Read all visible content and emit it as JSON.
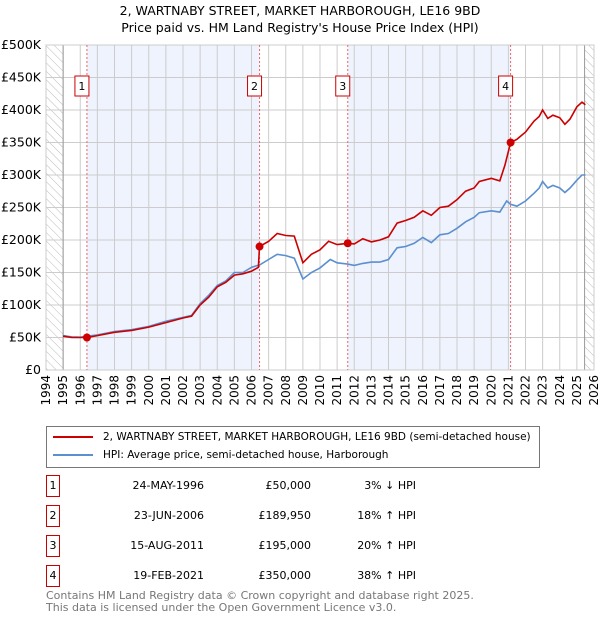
{
  "title": {
    "line1": "2, WARTNABY STREET, MARKET HARBOROUGH, LE16 9BD",
    "line2": "Price paid vs. HM Land Registry's House Price Index (HPI)"
  },
  "chart_data": {
    "type": "line",
    "xlim": [
      1994,
      2026
    ],
    "ylim": [
      0,
      500000
    ],
    "y_ticks": [
      {
        "v": 0,
        "label": "£0"
      },
      {
        "v": 50000,
        "label": "£50K"
      },
      {
        "v": 100000,
        "label": "£100K"
      },
      {
        "v": 150000,
        "label": "£150K"
      },
      {
        "v": 200000,
        "label": "£200K"
      },
      {
        "v": 250000,
        "label": "£250K"
      },
      {
        "v": 300000,
        "label": "£300K"
      },
      {
        "v": 350000,
        "label": "£350K"
      },
      {
        "v": 400000,
        "label": "£400K"
      },
      {
        "v": 450000,
        "label": "£450K"
      },
      {
        "v": 500000,
        "label": "£500K"
      }
    ],
    "x_ticks": [
      "1994",
      "1995",
      "1996",
      "1997",
      "1998",
      "1999",
      "2000",
      "2001",
      "2002",
      "2003",
      "2004",
      "2005",
      "2006",
      "2007",
      "2008",
      "2009",
      "2010",
      "2011",
      "2012",
      "2013",
      "2014",
      "2015",
      "2016",
      "2017",
      "2018",
      "2019",
      "2020",
      "2021",
      "2022",
      "2023",
      "2024",
      "2025",
      "2026"
    ],
    "grid": true,
    "colors": {
      "property": "#cc0000",
      "hpi": "#5b8fd0",
      "shade": "#eef3fd"
    },
    "series": [
      {
        "name": "2, WARTNABY STREET, MARKET HARBOROUGH, LE16 9BD (semi-detached house)",
        "points": [
          [
            1995,
            52000
          ],
          [
            1995.5,
            50000
          ],
          [
            1996.4,
            50000
          ],
          [
            1997,
            53000
          ],
          [
            1998,
            58000
          ],
          [
            1999,
            61000
          ],
          [
            2000,
            66000
          ],
          [
            2001,
            73000
          ],
          [
            2002,
            80000
          ],
          [
            2002.5,
            83000
          ],
          [
            2003,
            100000
          ],
          [
            2003.5,
            112000
          ],
          [
            2004,
            128000
          ],
          [
            2004.5,
            135000
          ],
          [
            2005,
            146000
          ],
          [
            2005.5,
            148000
          ],
          [
            2006,
            152000
          ],
          [
            2006.4,
            158000
          ],
          [
            2006.47,
            189950
          ],
          [
            2007,
            198000
          ],
          [
            2007.5,
            210000
          ],
          [
            2008,
            207000
          ],
          [
            2008.5,
            206000
          ],
          [
            2009,
            165000
          ],
          [
            2009.5,
            178000
          ],
          [
            2010,
            185000
          ],
          [
            2010.5,
            198000
          ],
          [
            2011,
            193000
          ],
          [
            2011.62,
            195000
          ],
          [
            2012,
            194000
          ],
          [
            2012.5,
            202000
          ],
          [
            2013,
            197000
          ],
          [
            2013.5,
            200000
          ],
          [
            2014,
            205000
          ],
          [
            2014.5,
            226000
          ],
          [
            2015,
            230000
          ],
          [
            2015.5,
            235000
          ],
          [
            2016,
            245000
          ],
          [
            2016.5,
            238000
          ],
          [
            2017,
            250000
          ],
          [
            2017.5,
            252000
          ],
          [
            2018,
            262000
          ],
          [
            2018.5,
            275000
          ],
          [
            2019,
            280000
          ],
          [
            2019.3,
            290000
          ],
          [
            2020,
            295000
          ],
          [
            2020.5,
            291000
          ],
          [
            2020.8,
            315000
          ],
          [
            2021.13,
            350000
          ],
          [
            2021.5,
            355000
          ],
          [
            2022,
            366000
          ],
          [
            2022.5,
            383000
          ],
          [
            2022.8,
            390000
          ],
          [
            2023,
            400000
          ],
          [
            2023.3,
            387000
          ],
          [
            2023.6,
            392000
          ],
          [
            2024,
            388000
          ],
          [
            2024.3,
            378000
          ],
          [
            2024.6,
            386000
          ],
          [
            2025,
            405000
          ],
          [
            2025.3,
            412000
          ],
          [
            2025.5,
            408000
          ]
        ]
      },
      {
        "name": "HPI: Average price, semi-detached house, Harborough",
        "points": [
          [
            1995,
            53000
          ],
          [
            1995.5,
            51000
          ],
          [
            1996,
            50500
          ],
          [
            1997,
            54000
          ],
          [
            1998,
            59000
          ],
          [
            1999,
            62000
          ],
          [
            2000,
            67000
          ],
          [
            2001,
            75000
          ],
          [
            2002,
            81000
          ],
          [
            2002.5,
            84000
          ],
          [
            2003,
            102000
          ],
          [
            2003.5,
            115000
          ],
          [
            2004,
            130000
          ],
          [
            2004.5,
            137000
          ],
          [
            2005,
            150000
          ],
          [
            2005.5,
            150000
          ],
          [
            2006,
            158000
          ],
          [
            2006.5,
            162000
          ],
          [
            2007,
            170000
          ],
          [
            2007.5,
            178000
          ],
          [
            2008,
            176000
          ],
          [
            2008.5,
            172000
          ],
          [
            2009,
            140000
          ],
          [
            2009.5,
            150000
          ],
          [
            2010,
            157000
          ],
          [
            2010.6,
            170000
          ],
          [
            2011,
            165000
          ],
          [
            2011.62,
            163000
          ],
          [
            2012,
            161000
          ],
          [
            2012.5,
            164000
          ],
          [
            2013,
            166000
          ],
          [
            2013.5,
            166000
          ],
          [
            2014,
            170000
          ],
          [
            2014.5,
            188000
          ],
          [
            2015,
            190000
          ],
          [
            2015.5,
            195000
          ],
          [
            2016,
            204000
          ],
          [
            2016.5,
            196000
          ],
          [
            2017,
            208000
          ],
          [
            2017.5,
            210000
          ],
          [
            2018,
            218000
          ],
          [
            2018.5,
            228000
          ],
          [
            2019,
            235000
          ],
          [
            2019.3,
            242000
          ],
          [
            2020,
            245000
          ],
          [
            2020.5,
            243000
          ],
          [
            2020.9,
            260000
          ],
          [
            2021.13,
            255000
          ],
          [
            2021.5,
            252000
          ],
          [
            2022,
            260000
          ],
          [
            2022.5,
            272000
          ],
          [
            2022.8,
            280000
          ],
          [
            2023,
            290000
          ],
          [
            2023.3,
            280000
          ],
          [
            2023.6,
            284000
          ],
          [
            2024,
            280000
          ],
          [
            2024.3,
            273000
          ],
          [
            2024.6,
            280000
          ],
          [
            2025,
            292000
          ],
          [
            2025.3,
            300000
          ],
          [
            2025.5,
            300000
          ]
        ]
      }
    ],
    "sales": [
      {
        "n": "1",
        "x": 1996.39,
        "y": 50000
      },
      {
        "n": "2",
        "x": 2006.47,
        "y": 189950
      },
      {
        "n": "3",
        "x": 2011.62,
        "y": 195000
      },
      {
        "n": "4",
        "x": 2021.13,
        "y": 350000
      }
    ],
    "data_end": 2025.45
  },
  "legend": {
    "property": "2, WARTNABY STREET, MARKET HARBOROUGH, LE16 9BD (semi-detached house)",
    "hpi": "HPI: Average price, semi-detached house, Harborough"
  },
  "transactions": [
    {
      "n": "1",
      "date": "24-MAY-1996",
      "price": "£50,000",
      "hpi": "3% ↓ HPI"
    },
    {
      "n": "2",
      "date": "23-JUN-2006",
      "price": "£189,950",
      "hpi": "18% ↑ HPI"
    },
    {
      "n": "3",
      "date": "15-AUG-2011",
      "price": "£195,000",
      "hpi": "20% ↑ HPI"
    },
    {
      "n": "4",
      "date": "19-FEB-2021",
      "price": "£350,000",
      "hpi": "38% ↑ HPI"
    }
  ],
  "footer": {
    "line1": "Contains HM Land Registry data © Crown copyright and database right 2025.",
    "line2": "This data is licensed under the Open Government Licence v3.0."
  }
}
